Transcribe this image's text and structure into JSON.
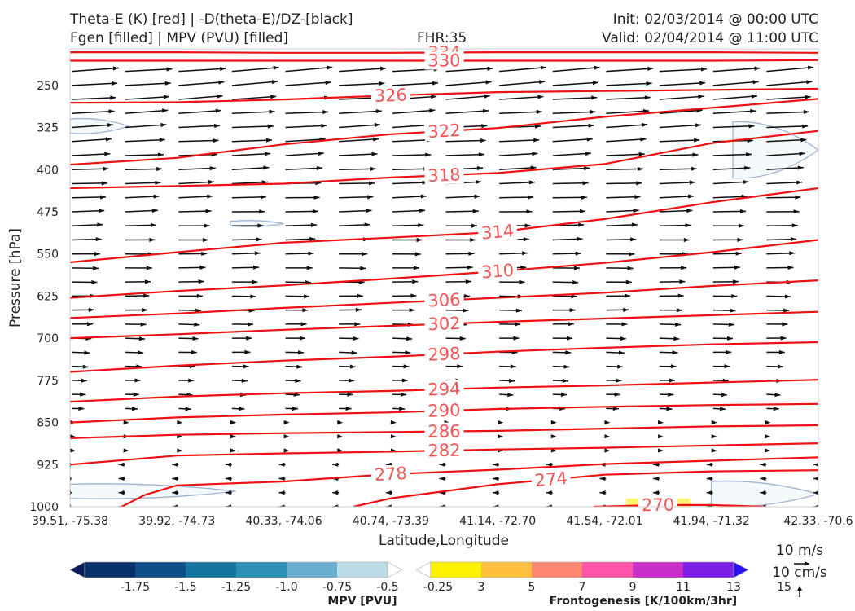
{
  "header": {
    "title_line1": "Theta-E (K) [red] | -D(theta-E)/DZ-[black]",
    "title_line2": "Fgen [filled] | MPV (PVU) [filled]",
    "fhr": "FHR:35",
    "init": "Init: 02/03/2014 @ 00:00 UTC",
    "valid": "Valid: 02/04/2014 @ 11:00 UTC"
  },
  "chart_data": {
    "type": "line",
    "title": "Theta-E (K) [red] | -D(theta-E)/DZ-[black]",
    "xlabel": "Latitude,Longitude",
    "ylabel": "Pressure [hPa]",
    "x_ticks": [
      "39.51, -75.38",
      "39.92, -74.73",
      "40.33, -74.06",
      "40.74, -73.39",
      "41.14, -72.70",
      "41.54, -72.01",
      "41.94, -71.32",
      "42.33, -70.6"
    ],
    "y_ticks": [
      250,
      325,
      400,
      475,
      550,
      625,
      700,
      775,
      850,
      925,
      1000
    ],
    "ylim": [
      1000,
      185
    ],
    "y_log": false,
    "x_range": [
      0,
      7
    ],
    "grid": false,
    "theta_e_contours": [
      {
        "level": 334,
        "label": "334",
        "label_x": 3.5,
        "points": [
          [
            0,
            191
          ],
          [
            1,
            191
          ],
          [
            2,
            192
          ],
          [
            3,
            192
          ],
          [
            4,
            191
          ],
          [
            5,
            191
          ],
          [
            6,
            191
          ],
          [
            7,
            192
          ]
        ]
      },
      {
        "level": 330,
        "label": "330",
        "label_x": 3.5,
        "points": [
          [
            0,
            206
          ],
          [
            1,
            206
          ],
          [
            2,
            206
          ],
          [
            3,
            206
          ],
          [
            4,
            206
          ],
          [
            5,
            206
          ],
          [
            6,
            206
          ],
          [
            7,
            205
          ]
        ]
      },
      {
        "level": 326,
        "label": "326",
        "label_x": 3.0,
        "points": [
          [
            0,
            281
          ],
          [
            1,
            280
          ],
          [
            2,
            275
          ],
          [
            3,
            268
          ],
          [
            4,
            262
          ],
          [
            5,
            260
          ],
          [
            6,
            258
          ],
          [
            7,
            256
          ]
        ]
      },
      {
        "level": 322,
        "label": "322",
        "label_x": 3.5,
        "points": [
          [
            0,
            391
          ],
          [
            1,
            379
          ],
          [
            2,
            355
          ],
          [
            3,
            337
          ],
          [
            4,
            326
          ],
          [
            5,
            306
          ],
          [
            6,
            290
          ],
          [
            7,
            274
          ]
        ]
      },
      {
        "level": 318,
        "label": "318",
        "label_x": 3.5,
        "points": [
          [
            0,
            433
          ],
          [
            1,
            429
          ],
          [
            2,
            425
          ],
          [
            3,
            414
          ],
          [
            4,
            406
          ],
          [
            5,
            390
          ],
          [
            6,
            353
          ],
          [
            7,
            331
          ]
        ]
      },
      {
        "level": 314,
        "label": "314",
        "label_x": 4.0,
        "points": [
          [
            0,
            565
          ],
          [
            1,
            547
          ],
          [
            2,
            530
          ],
          [
            3,
            521
          ],
          [
            4,
            511
          ],
          [
            5,
            488
          ],
          [
            6,
            458
          ],
          [
            7,
            433
          ]
        ]
      },
      {
        "level": 310,
        "label": "310",
        "label_x": 4.0,
        "points": [
          [
            0,
            628
          ],
          [
            1,
            616
          ],
          [
            2,
            606
          ],
          [
            3,
            594
          ],
          [
            4,
            581
          ],
          [
            5,
            566
          ],
          [
            6,
            547
          ],
          [
            7,
            525
          ]
        ]
      },
      {
        "level": 306,
        "label": "306",
        "label_x": 3.5,
        "points": [
          [
            0,
            664
          ],
          [
            1,
            656
          ],
          [
            2,
            646
          ],
          [
            3,
            637
          ],
          [
            4,
            628
          ],
          [
            5,
            619
          ],
          [
            6,
            607
          ],
          [
            7,
            597
          ]
        ]
      },
      {
        "level": 302,
        "label": "302",
        "label_x": 3.5,
        "points": [
          [
            0,
            700
          ],
          [
            1,
            693
          ],
          [
            2,
            685
          ],
          [
            3,
            678
          ],
          [
            4,
            671
          ],
          [
            5,
            665
          ],
          [
            6,
            659
          ],
          [
            7,
            653
          ]
        ]
      },
      {
        "level": 298,
        "label": "298",
        "label_x": 3.5,
        "points": [
          [
            0,
            760
          ],
          [
            1,
            749
          ],
          [
            2,
            740
          ],
          [
            3,
            733
          ],
          [
            4,
            724
          ],
          [
            5,
            717
          ],
          [
            6,
            711
          ],
          [
            7,
            707
          ]
        ]
      },
      {
        "level": 294,
        "label": "294",
        "label_x": 3.5,
        "points": [
          [
            0,
            813
          ],
          [
            1,
            804
          ],
          [
            2,
            798
          ],
          [
            3,
            794
          ],
          [
            4,
            788
          ],
          [
            5,
            784
          ],
          [
            6,
            779
          ],
          [
            7,
            774
          ]
        ]
      },
      {
        "level": 290,
        "label": "290",
        "label_x": 3.5,
        "points": [
          [
            0,
            850
          ],
          [
            1,
            841
          ],
          [
            2,
            836
          ],
          [
            3,
            832
          ],
          [
            4,
            826
          ],
          [
            5,
            822
          ],
          [
            6,
            819
          ],
          [
            7,
            817
          ]
        ]
      },
      {
        "level": 286,
        "label": "286",
        "label_x": 3.5,
        "points": [
          [
            0,
            878
          ],
          [
            1,
            872
          ],
          [
            2,
            869
          ],
          [
            3,
            867
          ],
          [
            4,
            865
          ],
          [
            5,
            861
          ],
          [
            6,
            857
          ],
          [
            7,
            855
          ]
        ]
      },
      {
        "level": 282,
        "label": "282",
        "label_x": 3.5,
        "points": [
          [
            0,
            925
          ],
          [
            1,
            909
          ],
          [
            2,
            905
          ],
          [
            3,
            902
          ],
          [
            4,
            898
          ],
          [
            5,
            895
          ],
          [
            6,
            891
          ],
          [
            7,
            887
          ]
        ]
      },
      {
        "level": 278,
        "label": "278",
        "label_x": 3.0,
        "points": [
          [
            0,
            1008
          ],
          [
            0.45,
            1003
          ],
          [
            0.7,
            979
          ],
          [
            1,
            962
          ],
          [
            2,
            955
          ],
          [
            3,
            942
          ],
          [
            4,
            934
          ],
          [
            5,
            924
          ],
          [
            6,
            918
          ],
          [
            7,
            912
          ]
        ]
      },
      {
        "level": 274,
        "label": "274",
        "label_x": 4.5,
        "points": [
          [
            2.65,
            1000
          ],
          [
            3,
            985
          ],
          [
            4,
            960
          ],
          [
            5,
            943
          ],
          [
            6,
            937
          ],
          [
            7,
            935
          ]
        ]
      },
      {
        "level": 270,
        "label": "270",
        "label_x": 5.5,
        "points": [
          [
            4.9,
            1000
          ],
          [
            5.5,
            997
          ],
          [
            6,
            997
          ],
          [
            6.5,
            1000
          ]
        ]
      }
    ],
    "mpv_regions_pvu": [
      {
        "level": "-0.25",
        "x": [
          0,
          0.55
        ],
        "p": [
          310,
          335
        ]
      },
      {
        "level": "-0.25",
        "x": [
          0,
          1.55
        ],
        "p": [
          960,
          985
        ]
      },
      {
        "level": "-0.25",
        "x": [
          6.2,
          7
        ],
        "p": [
          315,
          415
        ]
      },
      {
        "level": "-0.25",
        "x": [
          6.0,
          7
        ],
        "p": [
          955,
          1000
        ]
      },
      {
        "level": "-0.25",
        "x": [
          1.5,
          2.0
        ],
        "p": [
          492,
          500
        ]
      }
    ],
    "fgen_regions": [
      {
        "level": "3",
        "x": [
          5.2,
          5.8
        ],
        "p": [
          985,
          1000
        ]
      }
    ],
    "mpv_colorbar": {
      "title": "MPV [PVU]",
      "ticks": [
        "-1.75",
        "-1.5",
        "-1.25",
        "-1.0",
        "-0.75",
        "-0.5",
        "-0.25"
      ],
      "colors": [
        "#061a5c",
        "#08306b",
        "#0d4d8a",
        "#1573a0",
        "#2d8fb6",
        "#6aaed2",
        "#bcdce8",
        "#ffffff"
      ]
    },
    "fgen_colorbar": {
      "title": "Frontogenesis [K/100km/3hr]",
      "ticks": [
        "3",
        "5",
        "7",
        "9",
        "11",
        "13",
        "15"
      ],
      "colors": [
        "#ffffff",
        "#fff200",
        "#ffc040",
        "#ff8870",
        "#ff55a8",
        "#c82ec8",
        "#7a1ee6",
        "#2a10f5"
      ]
    },
    "reference_vectors": {
      "horizontal": "10 m/s",
      "vertical": "10 cm/s"
    },
    "vector_field": {
      "x_count": 15,
      "levels_hpa": [
        225,
        250,
        275,
        300,
        325,
        350,
        375,
        400,
        425,
        450,
        475,
        500,
        525,
        550,
        575,
        600,
        625,
        650,
        675,
        700,
        725,
        750,
        775,
        800,
        825,
        850,
        875,
        900,
        925,
        950,
        975,
        1000
      ]
    }
  },
  "colors": {
    "theta_e": "#ee1111",
    "contour_label": "#f25555",
    "vector": "#111111",
    "mpv_fill": "#f4f9fb",
    "mpv_edge": "#9fb3d3"
  }
}
